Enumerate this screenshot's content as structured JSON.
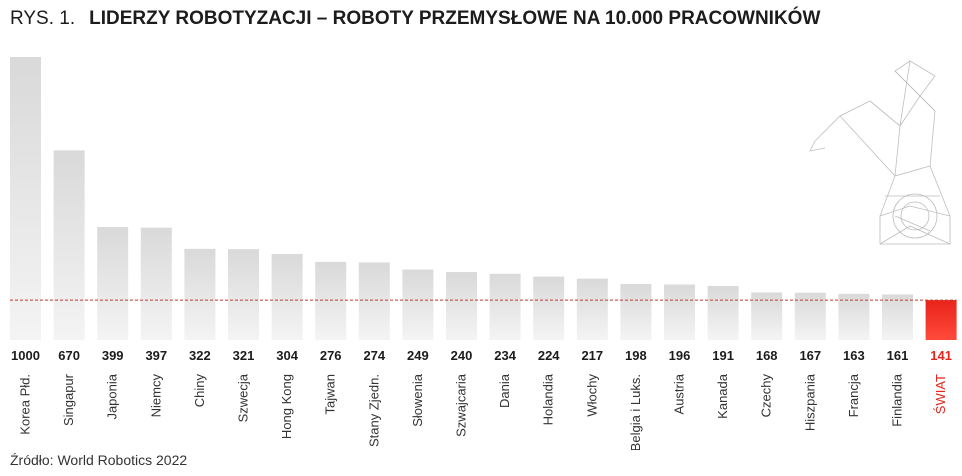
{
  "figure": {
    "prefix": "RYS. 1.",
    "title": "LIDERZY ROBOTYZACJI – ROBOTY PRZEMYSŁOWE NA 10.000 PRACOWNIKÓW",
    "source": "Źródło: World Robotics 2022"
  },
  "colors": {
    "bar_top": "#d9d9d9",
    "bar_bottom": "#f4f4f4",
    "highlight_top": "#e8231b",
    "highlight_bottom": "#ff4a3a",
    "highlight_text": "#e3261c",
    "reference_line": "#c0392b"
  },
  "chart_data": {
    "type": "bar",
    "title": "LIDERZY ROBOTYZACJI – ROBOTY PRZEMYSŁOWE NA 10.000 PRACOWNIKÓW",
    "categories": [
      "Korea Płd.",
      "Singapur",
      "Japonia",
      "Niemcy",
      "Chiny",
      "Szwecja",
      "Hong Kong",
      "Tajwan",
      "Stany Zjedn.",
      "Słowenia",
      "Szwajcaria",
      "Dania",
      "Holandia",
      "Włochy",
      "Belgia i Luks.",
      "Austria",
      "Kanada",
      "Czechy",
      "Hiszpania",
      "Francja",
      "Finlandia",
      "ŚWIAT"
    ],
    "values": [
      1000,
      670,
      399,
      397,
      322,
      321,
      304,
      276,
      274,
      249,
      240,
      234,
      224,
      217,
      198,
      196,
      191,
      168,
      167,
      163,
      161,
      141
    ],
    "highlight": "ŚWIAT",
    "reference_line_value": 141,
    "ylim": [
      0,
      1000
    ],
    "grid": false,
    "legend": "none"
  }
}
